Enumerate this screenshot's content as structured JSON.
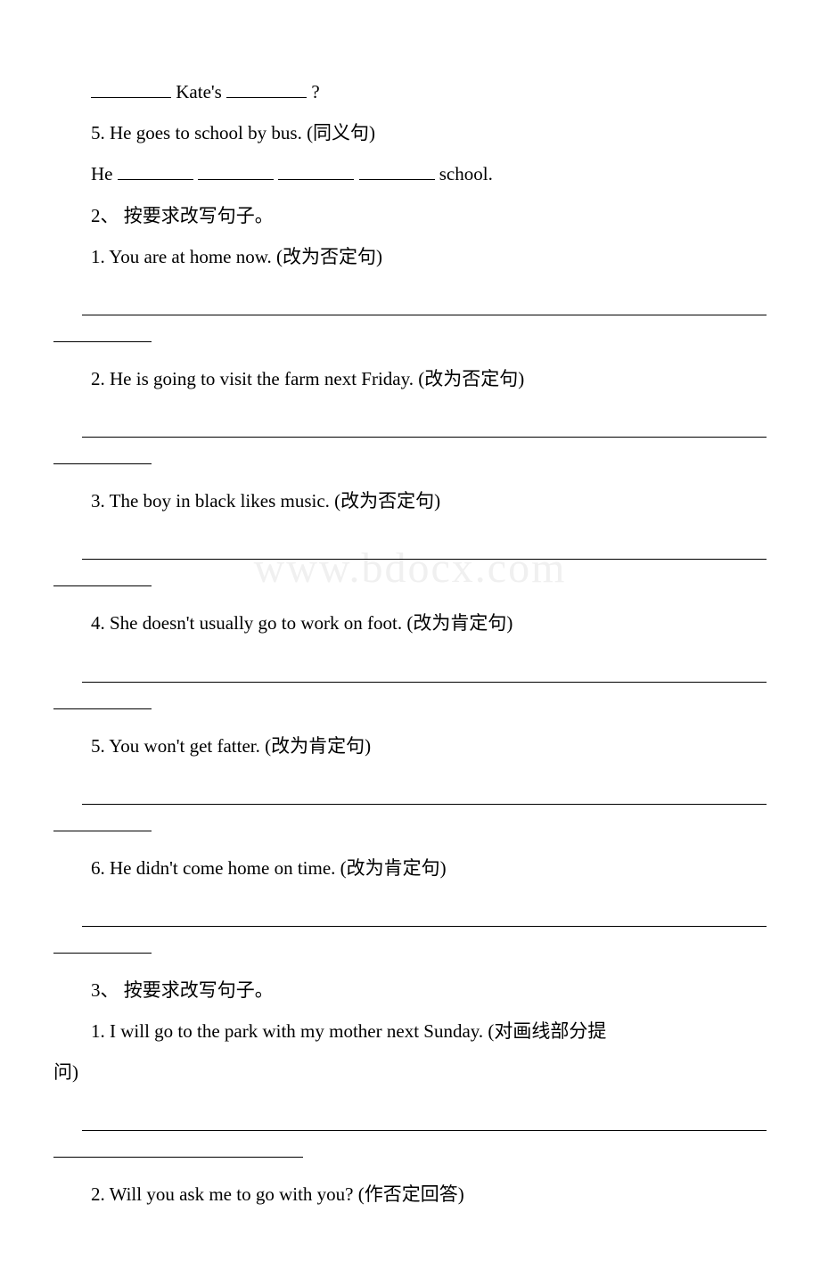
{
  "lines": {
    "l1a": "Kate's",
    "l1b": "?",
    "l2": "5. He goes to school by bus. (同义句)",
    "l3a": "He",
    "l3b": "school.",
    "l4": "2、 按要求改写句子。",
    "l5": "1. You are at home now. (改为否定句)",
    "l6": "2. He is going to visit the farm next Friday. (改为否定句)",
    "l7": "3. The boy in black likes music. (改为否定句)",
    "l8": "4. She doesn't usually go to work on foot. (改为肯定句)",
    "l9": "5. You won't get fatter. (改为肯定句)",
    "l10": "6. He didn't come home on time. (改为肯定句)",
    "l11": "3、 按要求改写句子。",
    "l12": "1. I will go to the park with my mother next Sunday. (对画线部分提",
    "l12b": "问)",
    "l13": "2. Will you ask me to go with you? (作否定回答)"
  },
  "watermark": "www.bdocx.com",
  "colors": {
    "text": "#000000",
    "background": "#ffffff",
    "watermark": "#f0f0f0"
  }
}
